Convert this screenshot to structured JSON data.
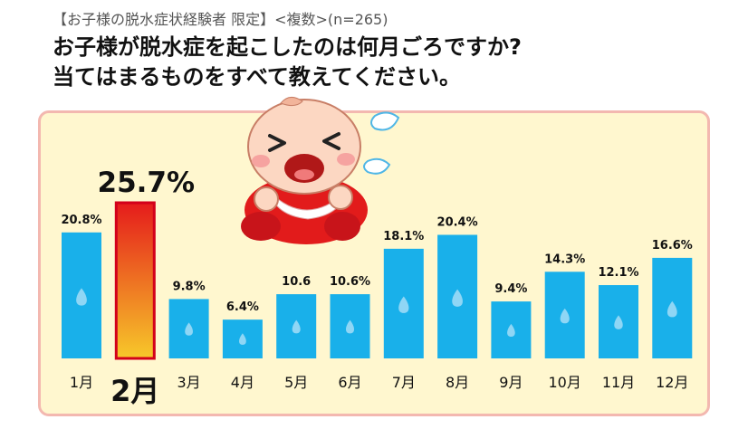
{
  "header": {
    "subtitle": "【お子様の脱水症状経験者 限定】<複数>(n=265)",
    "title_line1": "お子様が脱水症を起こしたのは何月ごろですか?",
    "title_line2": "当てはまるものをすべて教えてください。"
  },
  "chart_data": {
    "type": "bar",
    "categories": [
      "1月",
      "2月",
      "3月",
      "4月",
      "5月",
      "6月",
      "7月",
      "8月",
      "9月",
      "10月",
      "11月",
      "12月"
    ],
    "values": [
      20.8,
      25.7,
      9.8,
      6.4,
      10.6,
      10.6,
      18.1,
      20.4,
      9.4,
      14.3,
      12.1,
      16.6
    ],
    "value_labels": [
      "20.8%",
      "25.7%",
      "9.8%",
      "6.4%",
      "10.6",
      "10.6%",
      "18.1%",
      "20.4%",
      "9.4%",
      "14.3%",
      "12.1%",
      "16.6%"
    ],
    "highlight_index": 1,
    "ylim": [
      0,
      27
    ],
    "grid": false,
    "colors": {
      "bar": "#19b0ea",
      "highlight_top": "#e51b1b",
      "highlight_bottom": "#f7c82a",
      "highlight_border": "#d3001a",
      "drop": "#8fd6f5"
    }
  },
  "decoration": {
    "illustration": "crying-baby-icon",
    "droplet": "sweat-drop-icon"
  }
}
